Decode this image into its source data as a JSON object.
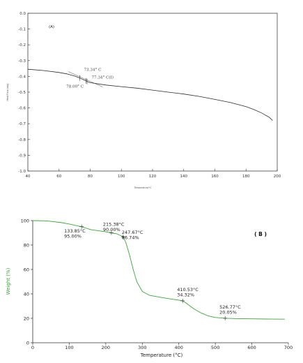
{
  "chart_data": [
    {
      "panel": "A",
      "type": "line",
      "title": "(A)",
      "xlabel": "Temperature/℃",
      "ylabel": "Heat Flow (w/g)",
      "xlim": [
        40,
        200
      ],
      "ylim": [
        -1.0,
        0.0
      ],
      "xticks": [
        "40",
        "60",
        "80",
        "100",
        "120",
        "140",
        "160",
        "180",
        "200"
      ],
      "yticks": [
        "0.0",
        "-0.1",
        "-0.2",
        "-0.3",
        "-0.4",
        "-0.5",
        "-0.6",
        "-0.7",
        "-0.8",
        "-0.9",
        "-1.0"
      ],
      "grid": false,
      "line_color": "#2b2b2b",
      "series": [
        {
          "x": [
            40,
            50,
            60,
            65,
            70,
            73.3,
            75,
            77.3,
            78,
            80,
            90,
            100,
            110,
            120,
            130,
            140,
            150,
            160,
            170,
            180,
            185,
            190,
            195,
            197
          ],
          "y": [
            -0.355,
            -0.363,
            -0.375,
            -0.384,
            -0.398,
            -0.41,
            -0.418,
            -0.428,
            -0.432,
            -0.44,
            -0.455,
            -0.465,
            -0.475,
            -0.487,
            -0.5,
            -0.512,
            -0.527,
            -0.546,
            -0.566,
            -0.592,
            -0.61,
            -0.632,
            -0.66,
            -0.68
          ]
        }
      ],
      "annotations": [
        {
          "text": "73.34° C",
          "x": 73.3,
          "y": -0.41
        },
        {
          "text": "77.34° C(I)",
          "x": 77.3,
          "y": -0.428
        },
        {
          "text": "78.00° C",
          "x": 78.0,
          "y": -0.432
        }
      ]
    },
    {
      "panel": "B",
      "type": "line",
      "title": "( B )",
      "xlabel": "Temperature (°C)",
      "ylabel": "Weight (%)",
      "xlim": [
        0,
        700
      ],
      "ylim": [
        0,
        100
      ],
      "xticks": [
        "0",
        "100",
        "200",
        "300",
        "400",
        "500",
        "600",
        "700"
      ],
      "yticks": [
        "0",
        "20",
        "40",
        "60",
        "80",
        "100"
      ],
      "grid": false,
      "line_color": "#3aa63a",
      "series": [
        {
          "x": [
            0,
            40,
            80,
            100,
            133.85,
            160,
            200,
            215.38,
            230,
            247.67,
            255,
            265,
            275,
            285,
            300,
            320,
            350,
            380,
            400,
            410.53,
            420,
            440,
            460,
            480,
            500,
            526.77,
            560,
            600,
            650,
            690
          ],
          "y": [
            100,
            99.8,
            98.3,
            97.2,
            95.0,
            92.5,
            90.8,
            90.0,
            89.2,
            86.74,
            82,
            72,
            60,
            50,
            42,
            38.8,
            37.2,
            35.8,
            34.9,
            34.32,
            32.5,
            28,
            24.5,
            22,
            20.7,
            20.05,
            19.8,
            19.6,
            19.4,
            19.3
          ]
        }
      ],
      "annotations": [
        {
          "temp": "133.85°C",
          "value": "95.00%",
          "x": 133.85,
          "y": 95.0
        },
        {
          "temp": "215.38°C",
          "value": "90.00%",
          "x": 215.38,
          "y": 90.0
        },
        {
          "temp": "247.67°C",
          "value": "86.74%",
          "x": 247.67,
          "y": 86.74
        },
        {
          "temp": "410.53°C",
          "value": "34.32%",
          "x": 410.53,
          "y": 34.32
        },
        {
          "temp": "526.77°C",
          "value": "20.05%",
          "x": 526.77,
          "y": 20.05
        }
      ]
    }
  ]
}
